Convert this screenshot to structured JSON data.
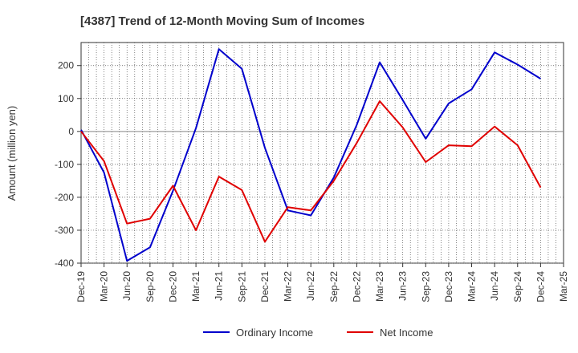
{
  "chart_data": {
    "type": "line",
    "title": "[4387]  Trend of 12-Month Moving Sum of Incomes",
    "xlabel": "",
    "ylabel": "Amount (million yen)",
    "categories": [
      "Dec-19",
      "Mar-20",
      "Jun-20",
      "Sep-20",
      "Dec-20",
      "Mar-21",
      "Jun-21",
      "Sep-21",
      "Dec-21",
      "Mar-22",
      "Jun-22",
      "Sep-22",
      "Dec-22",
      "Mar-23",
      "Jun-23",
      "Sep-23",
      "Dec-23",
      "Mar-24",
      "Jun-24",
      "Sep-24",
      "Dec-24",
      "Mar-25"
    ],
    "ylim": [
      -400,
      270
    ],
    "yticks": [
      -400,
      -300,
      -200,
      -100,
      0,
      100,
      200
    ],
    "ytick_labels": [
      "-400",
      "-300",
      "-200",
      "-100",
      "0",
      "100",
      "200"
    ],
    "grid": true,
    "legend_position": "bottom-center",
    "series": [
      {
        "name": "Ordinary Income",
        "color": "#0000cc",
        "values": [
          5,
          -125,
          -393,
          -352,
          -180,
          10,
          250,
          190,
          -50,
          -240,
          -255,
          -140,
          20,
          210,
          95,
          -22,
          85,
          128,
          240,
          203,
          160,
          null
        ]
      },
      {
        "name": "Net Income",
        "color": "#e00000",
        "values": [
          0,
          -90,
          -280,
          -265,
          -165,
          -300,
          -137,
          -178,
          -335,
          -230,
          -240,
          -150,
          -35,
          92,
          12,
          -93,
          -42,
          -45,
          15,
          -42,
          -170,
          null
        ]
      }
    ]
  }
}
